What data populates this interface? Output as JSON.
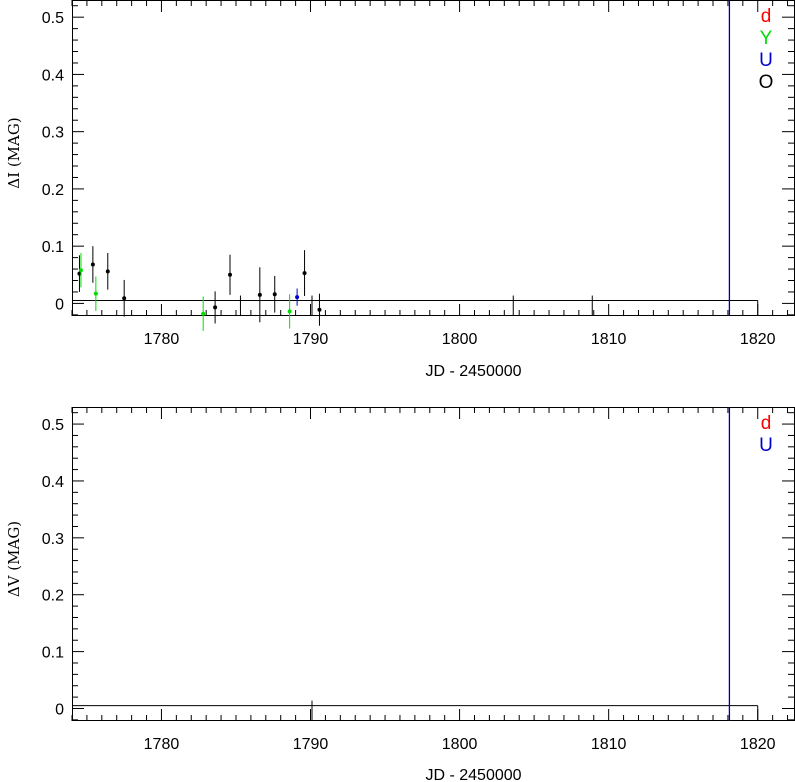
{
  "chart_data": [
    {
      "type": "scatter",
      "xlabel": "JD - 2450000",
      "ylabel": "ΔI (MAG)",
      "xlim": [
        1774,
        1822.5
      ],
      "ylim": [
        -0.022,
        0.53
      ],
      "xticks": [
        1780,
        1790,
        1800,
        1810,
        1820
      ],
      "yticks": [
        0,
        0.1,
        0.2,
        0.3,
        0.4,
        0.5
      ],
      "xtick_labels": [
        "1780",
        "1790",
        "1800",
        "1810",
        "1820"
      ],
      "ytick_labels": [
        "0",
        "0.1",
        "0.2",
        "0.3",
        "0.4",
        "0.5"
      ],
      "legend": [
        {
          "label": "d",
          "color": "#ff0000"
        },
        {
          "label": "Y",
          "color": "#00dd00"
        },
        {
          "label": "U",
          "color": "#0000cc"
        },
        {
          "label": "O",
          "color": "#000000"
        }
      ],
      "series": [
        {
          "color": "#000000",
          "points": [
            {
              "x": 1774.5,
              "y": 0.052,
              "err": 0.032
            },
            {
              "x": 1775.4,
              "y": 0.068,
              "err": 0.032
            },
            {
              "x": 1776.4,
              "y": 0.056,
              "err": 0.032
            },
            {
              "x": 1777.5,
              "y": 0.009,
              "err": 0.032
            },
            {
              "x": 1783.6,
              "y": -0.007,
              "err": 0.028
            },
            {
              "x": 1784.6,
              "y": 0.05,
              "err": 0.035
            },
            {
              "x": 1786.6,
              "y": 0.015,
              "err": 0.048
            },
            {
              "x": 1787.6,
              "y": 0.016,
              "err": 0.032
            },
            {
              "x": 1789.6,
              "y": 0.053,
              "err": 0.04
            },
            {
              "x": 1790.6,
              "y": -0.011,
              "err": 0.028
            }
          ]
        },
        {
          "color": "#00dd00",
          "points": [
            {
              "x": 1774.6,
              "y": 0.058,
              "err": 0.03
            },
            {
              "x": 1775.6,
              "y": 0.017,
              "err": 0.03
            },
            {
              "x": 1782.8,
              "y": -0.018,
              "err": 0.03
            },
            {
              "x": 1788.6,
              "y": -0.014,
              "err": 0.03
            }
          ]
        },
        {
          "color": "#0000cc",
          "points": [
            {
              "x": 1789.1,
              "y": 0.011,
              "err": 0.015
            }
          ]
        }
      ],
      "model_line": {
        "color": "#000000",
        "x": [
          1774,
          1820
        ],
        "y": [
          0.005,
          0.005
        ]
      },
      "model_steps": [
        1785.3,
        1790.1,
        1803.6,
        1808.9
      ],
      "vline": {
        "x": 1818.1,
        "color": "#0000aa"
      }
    },
    {
      "type": "scatter",
      "xlabel": "JD - 2450000",
      "ylabel": "ΔV (MAG)",
      "xlim": [
        1774,
        1822.5
      ],
      "ylim": [
        -0.022,
        0.53
      ],
      "xticks": [
        1780,
        1790,
        1800,
        1810,
        1820
      ],
      "yticks": [
        0,
        0.1,
        0.2,
        0.3,
        0.4,
        0.5
      ],
      "xtick_labels": [
        "1780",
        "1790",
        "1800",
        "1810",
        "1820"
      ],
      "ytick_labels": [
        "0",
        "0.1",
        "0.2",
        "0.3",
        "0.4",
        "0.5"
      ],
      "legend": [
        {
          "label": "d",
          "color": "#ff0000"
        },
        {
          "label": "U",
          "color": "#0000cc"
        }
      ],
      "series": [],
      "model_line": {
        "color": "#000000",
        "x": [
          1774,
          1820
        ],
        "y": [
          0.005,
          0.005
        ]
      },
      "model_steps": [
        1790.1
      ],
      "vline": {
        "x": 1818.1,
        "color": "#0000aa"
      }
    }
  ]
}
